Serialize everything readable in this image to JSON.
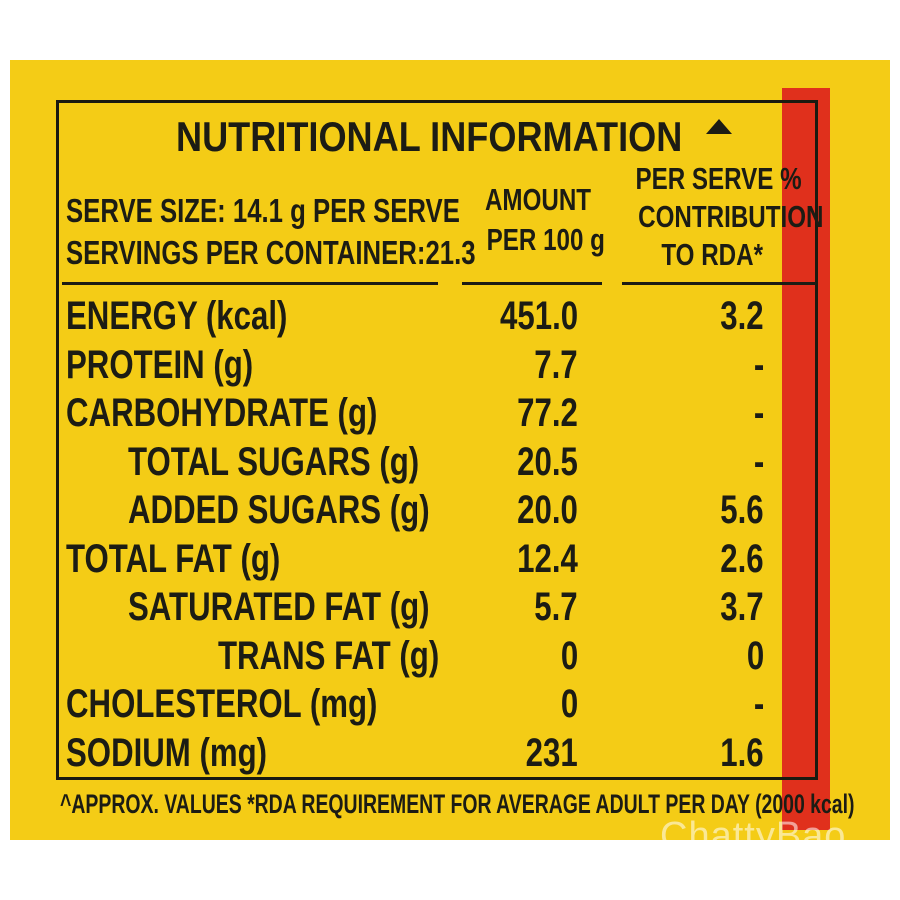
{
  "panel_colors": {
    "background": "#f4cc16",
    "stripe": "#e0301c",
    "text": "#1c1c14"
  },
  "title": "NUTRITIONAL INFORMATION",
  "title_mark_icon": "triangle-icon",
  "serve": {
    "size": "SERVE SIZE: 14.1 g PER SERVE",
    "servings": "SERVINGS PER CONTAINER:21.3"
  },
  "columns": {
    "amount": [
      "AMOUNT",
      "PER 100 g"
    ],
    "rda": [
      "PER SERVE %",
      "CONTRIBUTION",
      "TO RDA*"
    ]
  },
  "rows": [
    {
      "name": "ENERGY (kcal)",
      "amount": "451.0",
      "rda": "3.2",
      "indent": 0
    },
    {
      "name": "PROTEIN (g)",
      "amount": "7.7",
      "rda": "-",
      "indent": 0
    },
    {
      "name": "CARBOHYDRATE (g)",
      "amount": "77.2",
      "rda": "-",
      "indent": 0
    },
    {
      "name": "TOTAL SUGARS (g)",
      "amount": "20.5",
      "rda": "-",
      "indent": 1
    },
    {
      "name": "ADDED SUGARS (g)",
      "amount": "20.0",
      "rda": "5.6",
      "indent": 1
    },
    {
      "name": "TOTAL FAT (g)",
      "amount": "12.4",
      "rda": "2.6",
      "indent": 0
    },
    {
      "name": "SATURATED FAT (g)",
      "amount": "5.7",
      "rda": "3.7",
      "indent": 1
    },
    {
      "name": "TRANS FAT (g)",
      "amount": "0",
      "rda": "0",
      "indent": 2
    },
    {
      "name": "CHOLESTEROL (mg)",
      "amount": "0",
      "rda": "-",
      "indent": 0
    },
    {
      "name": "SODIUM (mg)",
      "amount": "231",
      "rda": "1.6",
      "indent": 0
    }
  ],
  "footnote": "^APPROX. VALUES *RDA REQUIREMENT FOR AVERAGE ADULT PER DAY (2000 kcal)",
  "watermark": "ChattyBao"
}
